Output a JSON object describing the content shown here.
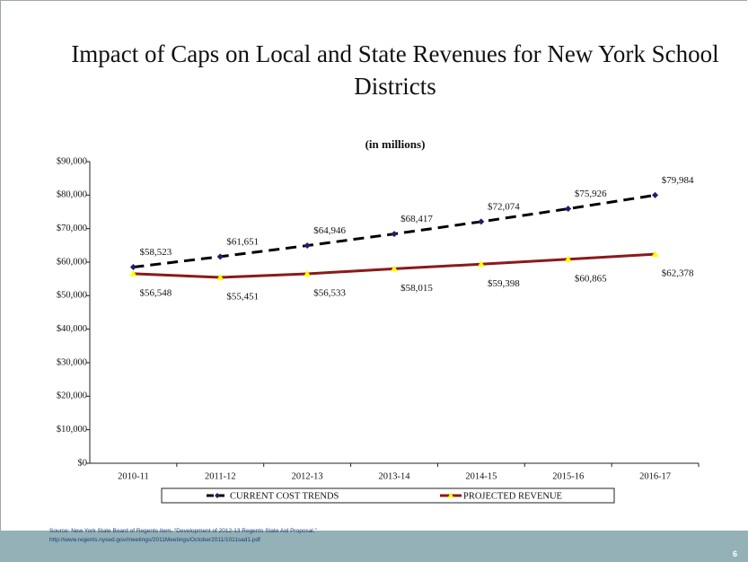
{
  "title": "Impact of Caps on Local and State Revenues for New York School Districts",
  "source": [
    "Source: New York State Board of Regents Item. “Development of 2012-13 Regents State Aid Proposal.”",
    "http://www.regents.nysed.gov/meetings/2011Meetings/October2011/1011sad1.pdf"
  ],
  "page_number": "6",
  "chart_data": {
    "type": "line",
    "subtitle": "(in millions)",
    "categories": [
      "2010-11",
      "2011-12",
      "2012-13",
      "2013-14",
      "2014-15",
      "2015-16",
      "2016-17"
    ],
    "series": [
      {
        "name": "CURRENT COST TRENDS",
        "color": "#000000",
        "marker_color": "#1b1f6e",
        "dashed": true,
        "values": [
          58523,
          61651,
          64946,
          68417,
          72074,
          75926,
          79984
        ],
        "value_labels": [
          "$58,523",
          "$61,651",
          "$64,946",
          "$68,417",
          "$72,074",
          "$75,926",
          "$79,984"
        ]
      },
      {
        "name": "PROJECTED REVENUE",
        "color": "#8b1a1a",
        "marker_color": "#ffff00",
        "dashed": false,
        "values": [
          56548,
          55451,
          56533,
          58015,
          59398,
          60865,
          62378
        ],
        "value_labels": [
          "$56,548",
          "$55,451",
          "$56,533",
          "$58,015",
          "$59,398",
          "$60,865",
          "$62,378"
        ]
      }
    ],
    "ylim": [
      0,
      90000
    ],
    "yticks": [
      {
        "value": 0,
        "label": "$0"
      },
      {
        "value": 10000,
        "label": "$10,000"
      },
      {
        "value": 20000,
        "label": "$20,000"
      },
      {
        "value": 30000,
        "label": "$30,000"
      },
      {
        "value": 40000,
        "label": "$40,000"
      },
      {
        "value": 50000,
        "label": "$50,000"
      },
      {
        "value": 60000,
        "label": "$60,000"
      },
      {
        "value": 70000,
        "label": "$70,000"
      },
      {
        "value": 80000,
        "label": "$80,000"
      },
      {
        "value": 90000,
        "label": "$90,000"
      }
    ],
    "legend": "bottom"
  }
}
